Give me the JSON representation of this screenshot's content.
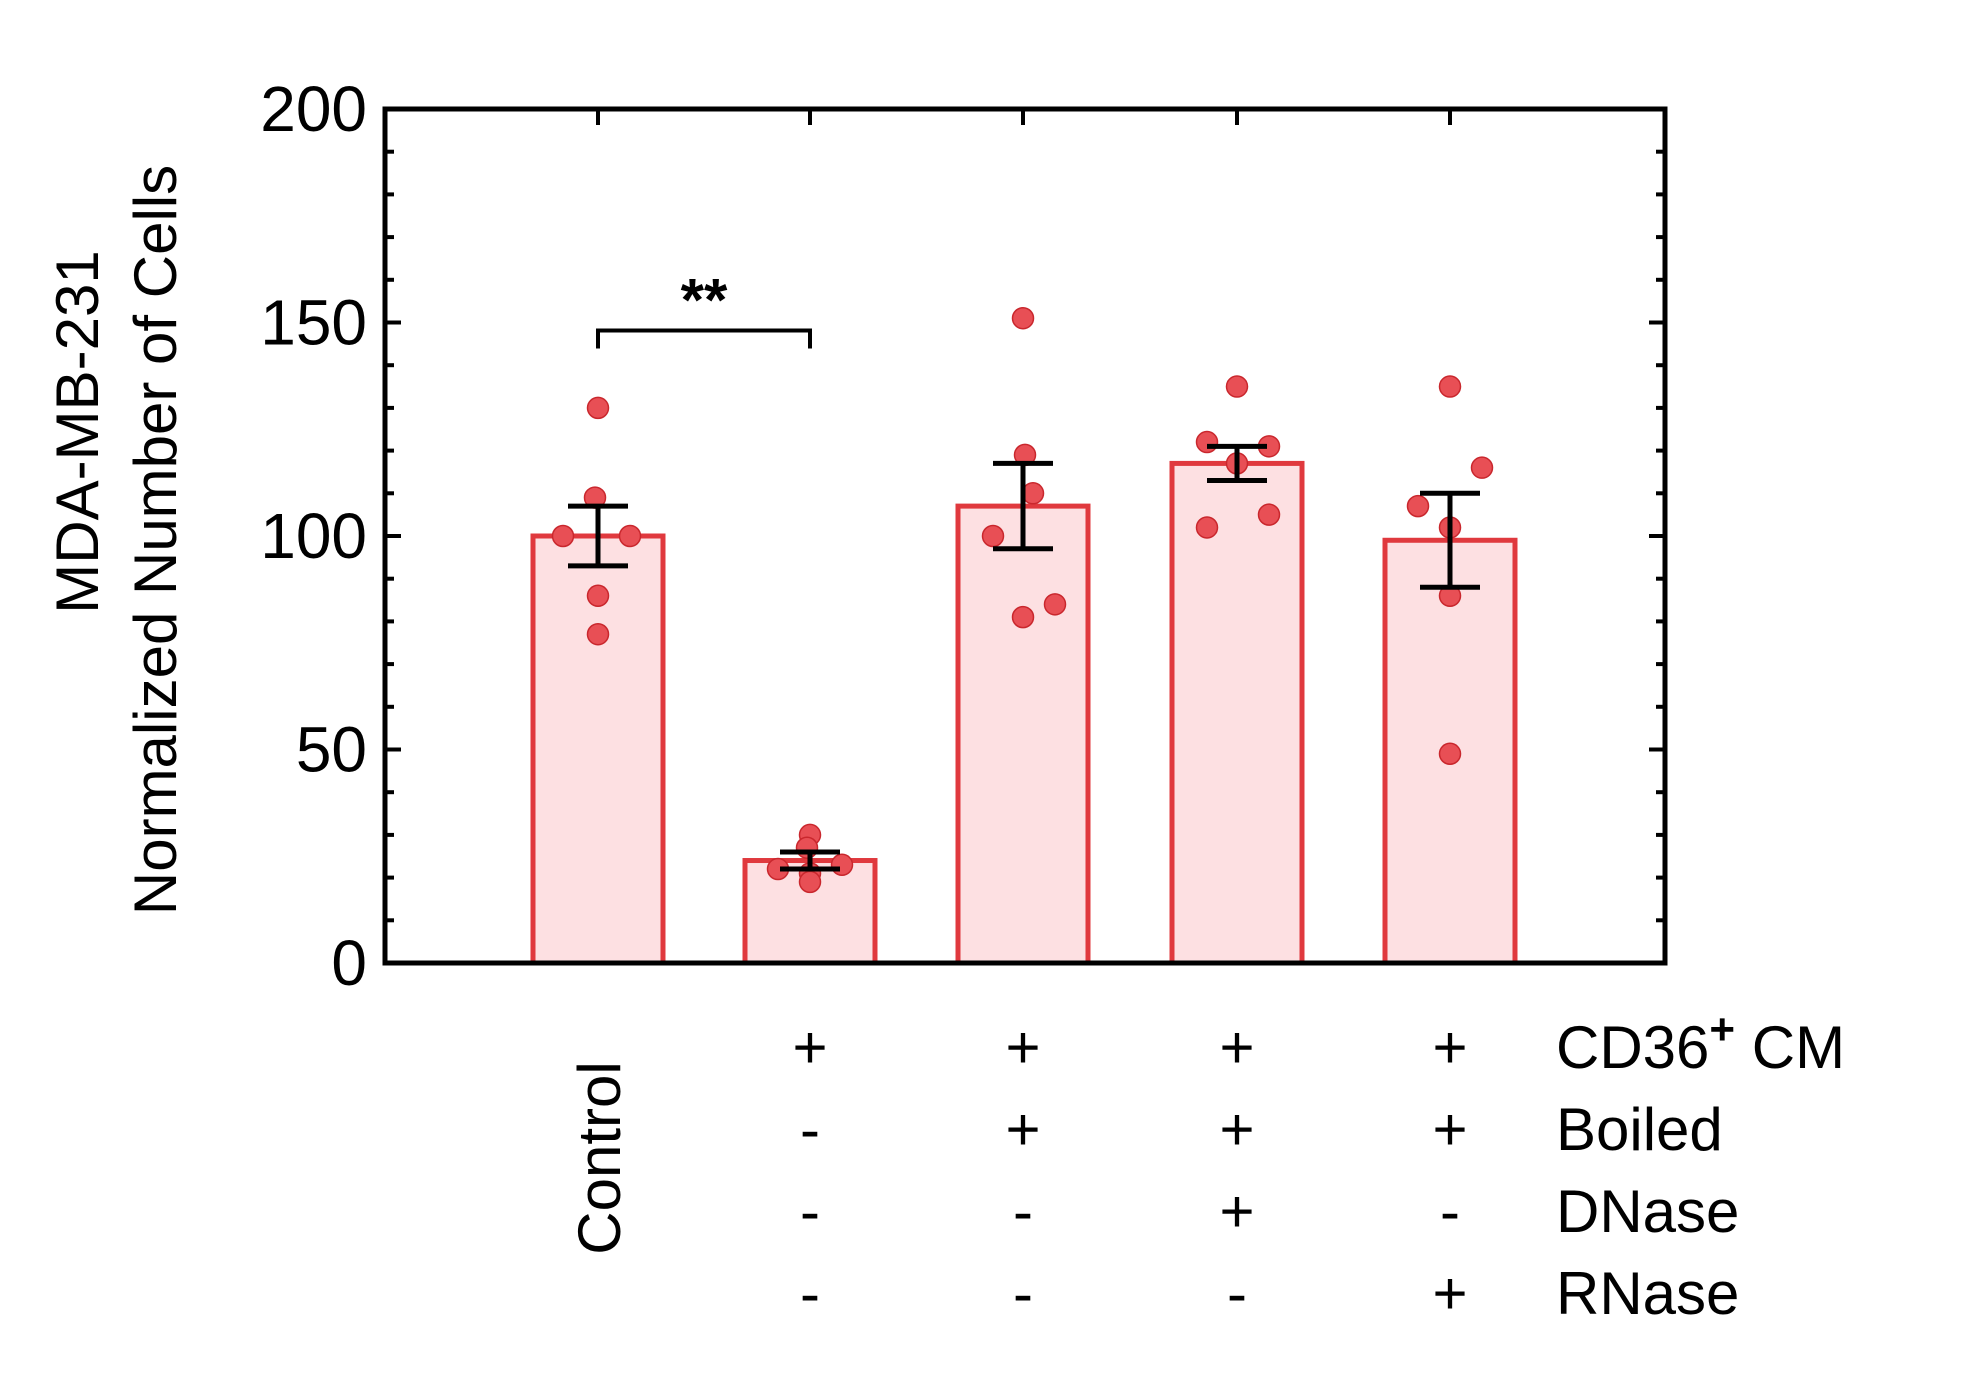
{
  "chart_data": {
    "type": "bar",
    "ylabel_lines": [
      "MDA-MB-231",
      "Normalized Number of Cells"
    ],
    "ylim": [
      0,
      200
    ],
    "yticks": [
      0,
      50,
      100,
      150,
      200
    ],
    "ytick_labels": [
      "0",
      "50",
      "100",
      "150",
      "200"
    ],
    "categories": [
      "Control",
      "CD36+ CM",
      "CD36+ CM Boiled",
      "CD36+ CM Boiled DNase",
      "CD36+ CM Boiled RNase"
    ],
    "values": [
      100,
      24,
      107,
      117,
      99
    ],
    "sem": [
      7,
      2,
      10,
      4,
      11
    ],
    "points": [
      [
        130,
        109,
        100,
        100,
        86,
        77
      ],
      [
        30,
        27,
        23,
        22,
        21,
        19
      ],
      [
        151,
        119,
        110,
        100,
        84,
        81
      ],
      [
        135,
        122,
        121,
        117,
        105,
        102
      ],
      [
        135,
        116,
        107,
        102,
        86,
        49
      ]
    ],
    "significance": {
      "from": 0,
      "to": 1,
      "label": "**",
      "y": 150
    },
    "condition_table": {
      "control_label": "Control",
      "rows": [
        {
          "label": "CD36",
          "superscript": "+",
          "suffix": " CM",
          "marks": [
            "",
            "+",
            "+",
            "+",
            "+"
          ]
        },
        {
          "label": "Boiled",
          "superscript": "",
          "suffix": "",
          "marks": [
            "",
            "-",
            "+",
            "+",
            "+"
          ]
        },
        {
          "label": "DNase",
          "superscript": "",
          "suffix": "",
          "marks": [
            "",
            "-",
            "-",
            "+",
            "-"
          ]
        },
        {
          "label": "RNase",
          "superscript": "",
          "suffix": "",
          "marks": [
            "",
            "-",
            "-",
            "-",
            "+"
          ]
        }
      ]
    },
    "colors": {
      "bar_fill": "#fde0e2",
      "bar_edge": "#e0393e",
      "point_fill": "#e84f55",
      "point_edge": "#c9272d",
      "error_bar": "#000000"
    }
  }
}
